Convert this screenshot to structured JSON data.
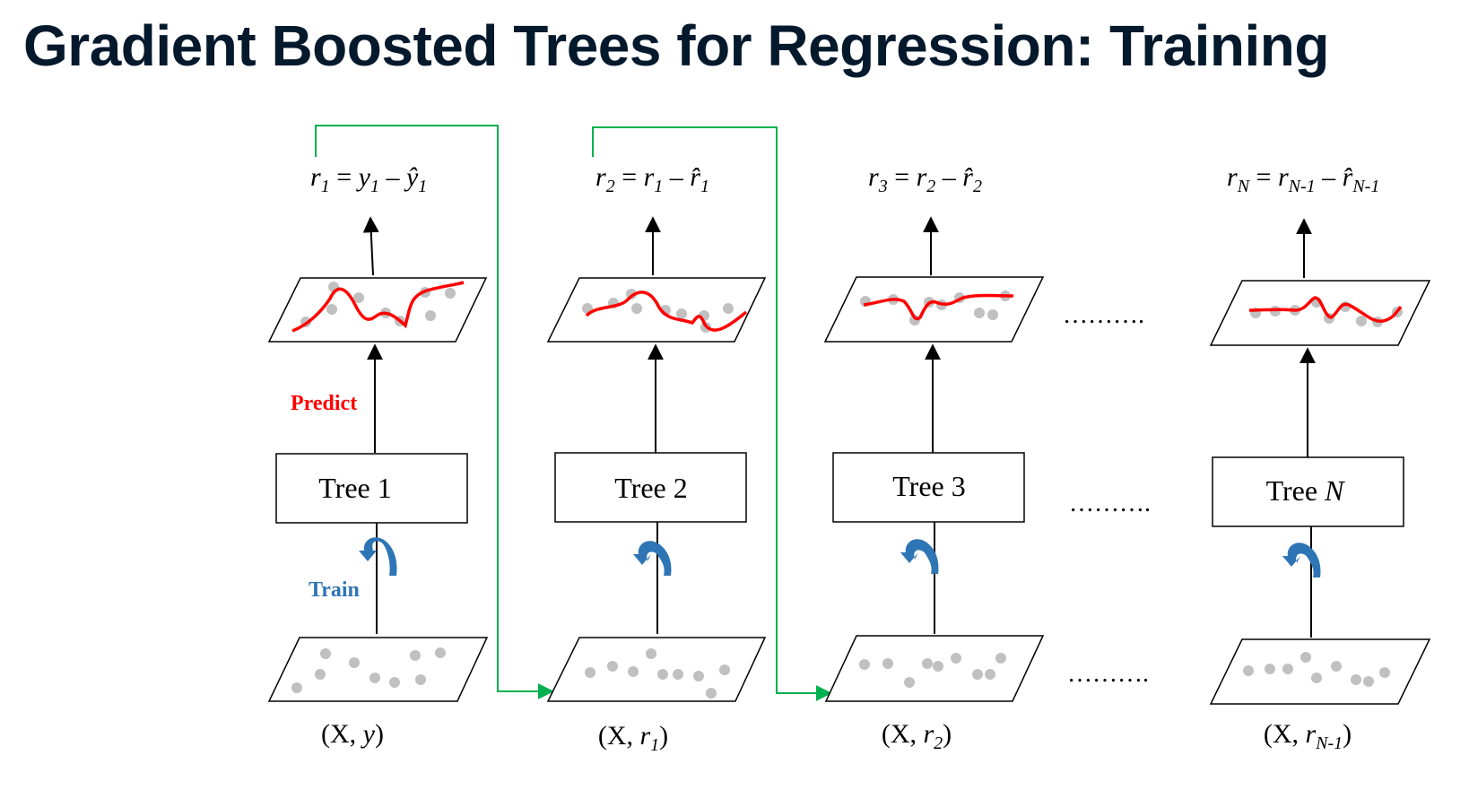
{
  "title": "Gradient Boosted Trees for Regression: Training",
  "labels": {
    "predict": "Predict",
    "train": "Train",
    "ellipsis": "………."
  },
  "colors": {
    "title": "#05192d",
    "predict": "#ff0000",
    "train": "#2e75b6",
    "feedback_arrow": "#00b050",
    "prediction_curve": "#ff0000",
    "data_point": "#c0c0c0",
    "train_arrow": "#2e75b6"
  },
  "stages": [
    {
      "tree": {
        "name": "Tree ",
        "index": "1"
      },
      "input": {
        "prefix": "(X, ",
        "var": "y",
        "sub": "",
        "suffix": ")"
      },
      "residual": {
        "lhs": "r",
        "lhs_sub": "1",
        "a": "y",
        "a_sub": "1",
        "b": "ŷ",
        "b_sub": "1"
      }
    },
    {
      "tree": {
        "name": "Tree ",
        "index": "2"
      },
      "input": {
        "prefix": "(X, ",
        "var": "r",
        "sub": "1",
        "suffix": ")"
      },
      "residual": {
        "lhs": "r",
        "lhs_sub": "2",
        "a": "r",
        "a_sub": "1",
        "b": "r̂",
        "b_sub": "1"
      }
    },
    {
      "tree": {
        "name": "Tree ",
        "index": "3"
      },
      "input": {
        "prefix": "(X, ",
        "var": "r",
        "sub": "2",
        "suffix": ")"
      },
      "residual": {
        "lhs": "r",
        "lhs_sub": "3",
        "a": "r",
        "a_sub": "2",
        "b": "r̂",
        "b_sub": "2"
      }
    },
    {
      "tree": {
        "name": "Tree ",
        "index": "N"
      },
      "input": {
        "prefix": "(X, ",
        "var": "r",
        "sub": "N-1",
        "suffix": ")"
      },
      "residual": {
        "lhs": "r",
        "lhs_sub": "N",
        "a": "r",
        "a_sub": "N-1",
        "b": "r̂",
        "b_sub": "N-1"
      }
    }
  ]
}
